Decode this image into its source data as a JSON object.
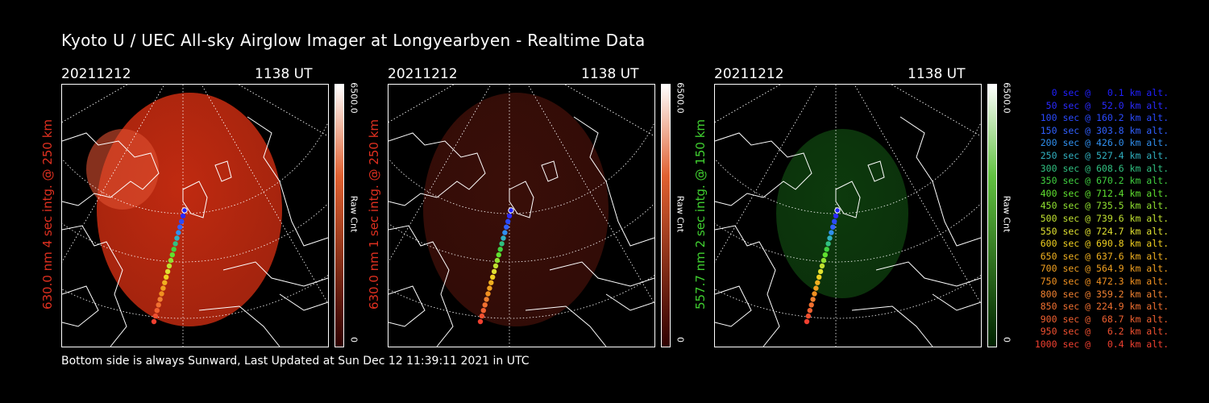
{
  "title": "Kyoto U / UEC All-sky Airglow Imager at Longyearbyen - Realtime Data",
  "footer": "Bottom side is always Sunward, Last Updated at Sun Dec 12 11:39:11 2021 in UTC",
  "panels": [
    {
      "date": "20211212",
      "time": "1138 UT",
      "side_label": "630.0 nm 4 sec intg. @ 250 km",
      "side_color": "#e03020",
      "cbar_max": "6500.0",
      "cbar_min": "0",
      "cbar_unit": "Raw Cnt",
      "image_color": "#c02a10",
      "cbar_top": "#ffffff",
      "cbar_bottom": "#300000"
    },
    {
      "date": "20211212",
      "time": "1138 UT",
      "side_label": "630.0 nm 1 sec intg. @ 250 km",
      "side_color": "#e03020",
      "cbar_max": "6500.0",
      "cbar_min": "0",
      "cbar_unit": "Raw Cnt",
      "image_color": "#3a0e08",
      "cbar_top": "#ffffff",
      "cbar_bottom": "#300000"
    },
    {
      "date": "20211212",
      "time": "1138 UT",
      "side_label": "557.7 nm 2 sec intg. @ 150 km",
      "side_color": "#40d030",
      "cbar_max": "6500.0",
      "cbar_min": "0",
      "cbar_unit": "Raw Cnt",
      "image_color": "#0d3a0d",
      "cbar_top": "#ffffff",
      "cbar_bottom": "#002200"
    }
  ],
  "legend": [
    {
      "text": "0 sec @   0.1 km alt.",
      "color": "#2020ff"
    },
    {
      "text": "50 sec @  52.0 km alt.",
      "color": "#2a2aff"
    },
    {
      "text": "100 sec @ 160.2 km alt.",
      "color": "#2a4aff"
    },
    {
      "text": "150 sec @ 303.8 km alt.",
      "color": "#3060ff"
    },
    {
      "text": "200 sec @ 426.0 km alt.",
      "color": "#3090f0"
    },
    {
      "text": "250 sec @ 527.4 km alt.",
      "color": "#30b0c0"
    },
    {
      "text": "300 sec @ 608.6 km alt.",
      "color": "#30c080"
    },
    {
      "text": "350 sec @ 670.2 km alt.",
      "color": "#40d040"
    },
    {
      "text": "400 sec @ 712.4 km alt.",
      "color": "#60e030"
    },
    {
      "text": "450 sec @ 735.5 km alt.",
      "color": "#90e030"
    },
    {
      "text": "500 sec @ 739.6 km alt.",
      "color": "#c0e030"
    },
    {
      "text": "550 sec @ 724.7 km alt.",
      "color": "#e0e030"
    },
    {
      "text": "600 sec @ 690.8 km alt.",
      "color": "#f0d020"
    },
    {
      "text": "650 sec @ 637.6 km alt.",
      "color": "#f0b020"
    },
    {
      "text": "700 sec @ 564.9 km alt.",
      "color": "#f0a020"
    },
    {
      "text": "750 sec @ 472.3 km alt.",
      "color": "#f09020"
    },
    {
      "text": "800 sec @ 359.2 km alt.",
      "color": "#f08030"
    },
    {
      "text": "850 sec @ 224.9 km alt.",
      "color": "#f07030"
    },
    {
      "text": "900 sec @  68.7 km alt.",
      "color": "#f06030"
    },
    {
      "text": "950 sec @   6.2 km alt.",
      "color": "#f05030"
    },
    {
      "text": "1000 sec @   0.4 km alt.",
      "color": "#f04030"
    }
  ]
}
